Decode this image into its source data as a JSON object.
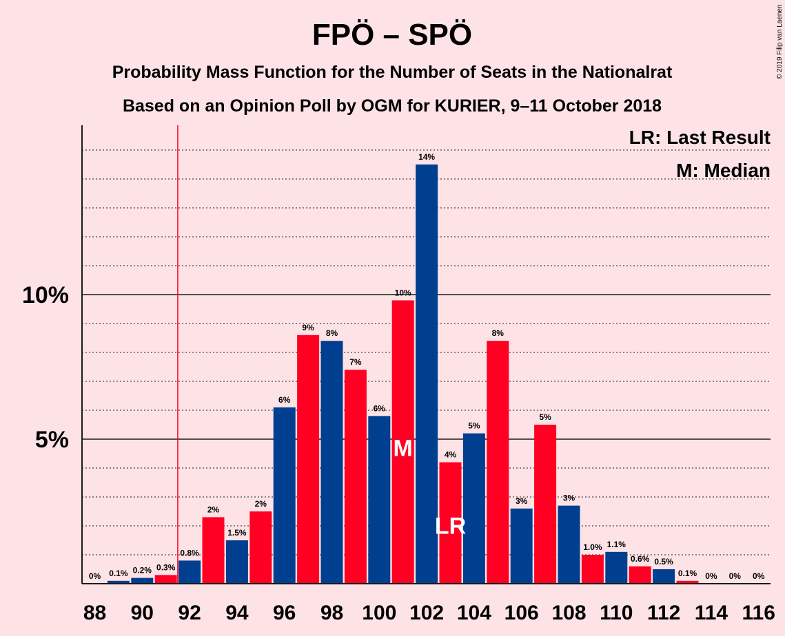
{
  "header": {
    "title": "FPÖ – SPÖ",
    "subtitle1": "Probability Mass Function for the Number of Seats in the Nationalrat",
    "subtitle2": "Based on an Opinion Poll by OGM for KURIER, 9–11 October 2018",
    "copyright": "© 2019 Filip van Laenen"
  },
  "legend": {
    "last_result": "LR: Last Result",
    "median": "M: Median"
  },
  "colors": {
    "background": "#fde3e6",
    "blue": "#003f8f",
    "red": "#ff0022",
    "last_result_line": "#ff0022"
  },
  "chart_data": {
    "type": "bar",
    "x": [
      88,
      89,
      90,
      91,
      92,
      93,
      94,
      95,
      96,
      97,
      98,
      99,
      100,
      101,
      102,
      103,
      104,
      105,
      106,
      107,
      108,
      109,
      110,
      111,
      112,
      113,
      114,
      115,
      116
    ],
    "values": [
      0,
      0.1,
      0.2,
      0.3,
      0.8,
      2.3,
      1.5,
      2.5,
      6.1,
      8.6,
      8.4,
      7.4,
      5.8,
      9.8,
      14.5,
      4.2,
      5.2,
      8.4,
      2.6,
      5.5,
      2.7,
      1.0,
      1.1,
      0.6,
      0.5,
      0.1,
      0,
      0,
      0
    ],
    "data_labels": [
      "0%",
      "0.1%",
      "0.2%",
      "0.3%",
      "0.8%",
      "2%",
      "1.5%",
      "2%",
      "6%",
      "9%",
      "8%",
      "7%",
      "6%",
      "10%",
      "14%",
      "4%",
      "5%",
      "8%",
      "3%",
      "5%",
      "3%",
      "1.0%",
      "1.1%",
      "0.6%",
      "0.5%",
      "0.1%",
      "0%",
      "0%",
      "0%"
    ],
    "bar_colors": [
      "blue",
      "blue",
      "blue",
      "red",
      "blue",
      "red",
      "blue",
      "red",
      "blue",
      "red",
      "blue",
      "red",
      "blue",
      "red",
      "blue",
      "red",
      "blue",
      "red",
      "blue",
      "red",
      "blue",
      "red",
      "blue",
      "red",
      "blue",
      "red",
      "blue",
      "red",
      "blue"
    ],
    "x_tick_labels": [
      "88",
      "90",
      "92",
      "94",
      "96",
      "98",
      "100",
      "102",
      "104",
      "106",
      "108",
      "110",
      "112",
      "114",
      "116"
    ],
    "x_tick_values": [
      88,
      90,
      92,
      94,
      96,
      98,
      100,
      102,
      104,
      106,
      108,
      110,
      112,
      114,
      116
    ],
    "y_tick_labels": [
      "5%",
      "10%"
    ],
    "y_tick_values": [
      5,
      10
    ],
    "ylim": [
      0,
      15.8
    ],
    "gridlines_dotted_every": 1,
    "last_result_seat": 91.5,
    "last_result_marker_seat": 103,
    "last_result_marker": "LR",
    "median_seat": 101,
    "median_marker": "M",
    "legend_position": "top-right"
  }
}
